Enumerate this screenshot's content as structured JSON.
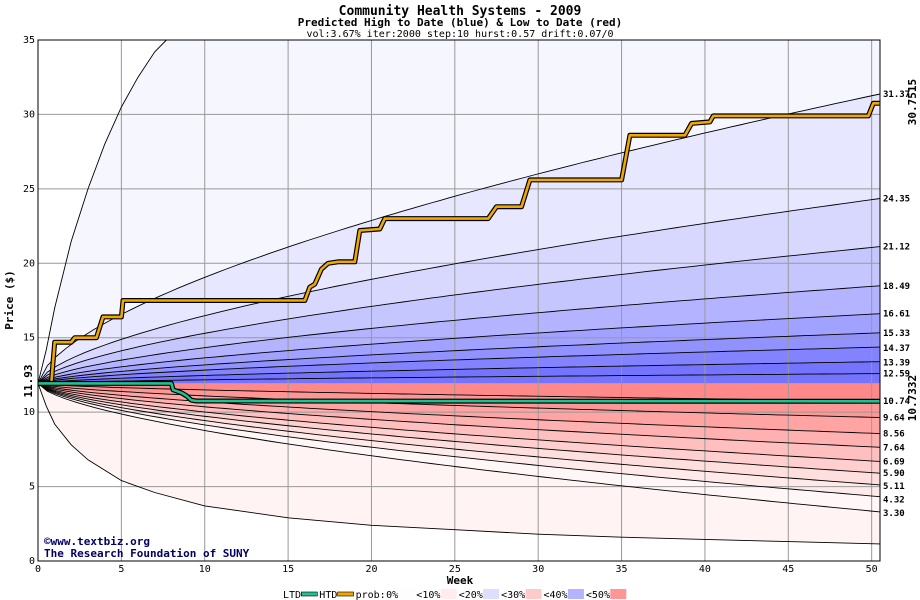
{
  "chart_data": {
    "type": "area",
    "title": "Community Health Systems - 2009",
    "subtitle": "Predicted High to Date (blue) &  Low to Date (red)",
    "params": "vol:3.67% iter:2000 step:10 hurst:0.57 drift:0.07/0",
    "xlabel": "Week",
    "ylabel": "Price ($)",
    "xlim": [
      0,
      50.5
    ],
    "ylim": [
      0,
      35
    ],
    "x_ticks": [
      0,
      5,
      10,
      15,
      20,
      25,
      30,
      35,
      40,
      45,
      50
    ],
    "y_ticks": [
      0,
      5,
      10,
      15,
      20,
      25,
      30,
      35
    ],
    "start_price": 11.93,
    "start_price_label": "11.93",
    "htd_final_label": "30.7515",
    "ltd_final_label": "10.7332",
    "high_percentile_end_values": [
      31.37,
      24.35,
      21.12,
      18.49,
      16.61,
      15.33,
      14.37,
      13.39,
      12.59
    ],
    "low_percentile_end_values": [
      10.74,
      9.64,
      8.56,
      7.64,
      6.69,
      5.9,
      5.11,
      4.32,
      3.3
    ],
    "right_labels": [
      "31.37",
      "24.35",
      "21.12",
      "18.49",
      "16.61",
      "15.33",
      "14.37",
      "13.39",
      "12.59",
      "10.74",
      "9.64",
      "8.56",
      "7.64",
      "6.69",
      "5.90",
      "5.11",
      "4.32",
      "3.30"
    ],
    "outer_high_path": [
      [
        0,
        11.93
      ],
      [
        0.5,
        14.2
      ],
      [
        1,
        17
      ],
      [
        2,
        21.5
      ],
      [
        3,
        25
      ],
      [
        4,
        28
      ],
      [
        5,
        30.5
      ],
      [
        6,
        32.5
      ],
      [
        7,
        34.2
      ],
      [
        7.7,
        35
      ]
    ],
    "outer_low_path": [
      [
        0,
        11.93
      ],
      [
        0.5,
        10.4
      ],
      [
        1,
        9.2
      ],
      [
        2,
        7.8
      ],
      [
        3,
        6.8
      ],
      [
        5,
        5.4
      ],
      [
        7,
        4.6
      ],
      [
        10,
        3.7
      ],
      [
        15,
        2.9
      ],
      [
        20,
        2.4
      ],
      [
        25,
        2.1
      ],
      [
        30,
        1.8
      ],
      [
        35,
        1.6
      ],
      [
        40,
        1.45
      ],
      [
        45,
        1.3
      ],
      [
        50.5,
        1.15
      ]
    ],
    "htd_series": [
      [
        0,
        11.93
      ],
      [
        0.8,
        11.93
      ],
      [
        1.0,
        14.7
      ],
      [
        2.0,
        14.7
      ],
      [
        2.2,
        15.0
      ],
      [
        3.5,
        15.0
      ],
      [
        3.9,
        16.4
      ],
      [
        5.0,
        16.4
      ],
      [
        5.1,
        17.5
      ],
      [
        16.0,
        17.5
      ],
      [
        16.3,
        18.4
      ],
      [
        16.6,
        18.6
      ],
      [
        17.0,
        19.6
      ],
      [
        17.4,
        20.0
      ],
      [
        18.0,
        20.1
      ],
      [
        19.0,
        20.1
      ],
      [
        19.3,
        22.2
      ],
      [
        20.5,
        22.3
      ],
      [
        20.8,
        23.0
      ],
      [
        27.0,
        23.0
      ],
      [
        27.5,
        23.8
      ],
      [
        29.0,
        23.8
      ],
      [
        29.5,
        25.6
      ],
      [
        35.0,
        25.6
      ],
      [
        35.5,
        28.6
      ],
      [
        38.8,
        28.6
      ],
      [
        39.2,
        29.4
      ],
      [
        40.3,
        29.5
      ],
      [
        40.5,
        29.9
      ],
      [
        49.8,
        29.9
      ],
      [
        50.1,
        30.75
      ],
      [
        50.5,
        30.75
      ]
    ],
    "ltd_series": [
      [
        0,
        11.93
      ],
      [
        8.0,
        11.93
      ],
      [
        8.1,
        11.5
      ],
      [
        8.6,
        11.3
      ],
      [
        8.9,
        11.1
      ],
      [
        9.2,
        10.8
      ],
      [
        9.5,
        10.75
      ],
      [
        50.5,
        10.73
      ]
    ],
    "colors": {
      "high_fill": "#6868ff",
      "low_fill": "#ff6868",
      "htd_line": "#f0a800",
      "ltd_line": "#20c090",
      "grid": "#999999",
      "htd_label": "#a07800",
      "ltd_label": "#007050",
      "credit": "#000066"
    }
  },
  "credit": {
    "line1": "www.textbiz.org",
    "line2": "The Research Foundation of SUNY",
    "copyright_icon": "copyright-icon"
  },
  "legend": {
    "ltd": "LTD",
    "htd": "HTD",
    "prob_prefix": "prob:",
    "items": [
      "0%",
      "<10%",
      "<20%",
      "<30%",
      "<40%",
      "<50%"
    ]
  }
}
